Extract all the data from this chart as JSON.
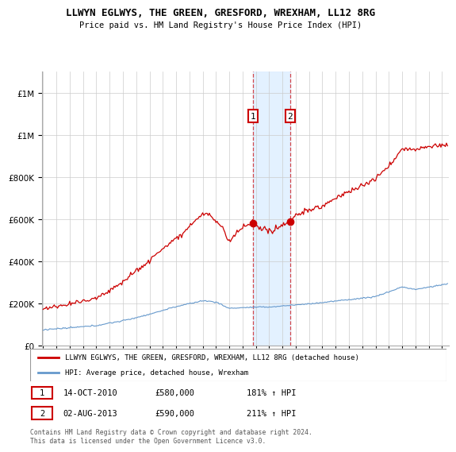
{
  "title1": "LLWYN EGLWYS, THE GREEN, GRESFORD, WREXHAM, LL12 8RG",
  "title2": "Price paid vs. HM Land Registry's House Price Index (HPI)",
  "legend_red": "LLWYN EGLWYS, THE GREEN, GRESFORD, WREXHAM, LL12 8RG (detached house)",
  "legend_blue": "HPI: Average price, detached house, Wrexham",
  "sale1_label": "1",
  "sale1_date": "14-OCT-2010",
  "sale1_price": "£580,000",
  "sale1_hpi": "181% ↑ HPI",
  "sale1_year": 2010.79,
  "sale1_value": 580000,
  "sale2_label": "2",
  "sale2_date": "02-AUG-2013",
  "sale2_price": "£590,000",
  "sale2_hpi": "211% ↑ HPI",
  "sale2_year": 2013.58,
  "sale2_value": 590000,
  "footer": "Contains HM Land Registry data © Crown copyright and database right 2024.\nThis data is licensed under the Open Government Licence v3.0.",
  "red_color": "#cc0000",
  "blue_color": "#6699cc",
  "shade_color": "#ddeeff",
  "vline_color": "#cc0000",
  "marker_box_color": "#cc0000",
  "ylim": [
    0,
    1300000
  ],
  "xlim_start": 1994.9,
  "xlim_end": 2025.5,
  "yticks": [
    0,
    200000,
    400000,
    600000,
    800000,
    1000000,
    1200000
  ]
}
